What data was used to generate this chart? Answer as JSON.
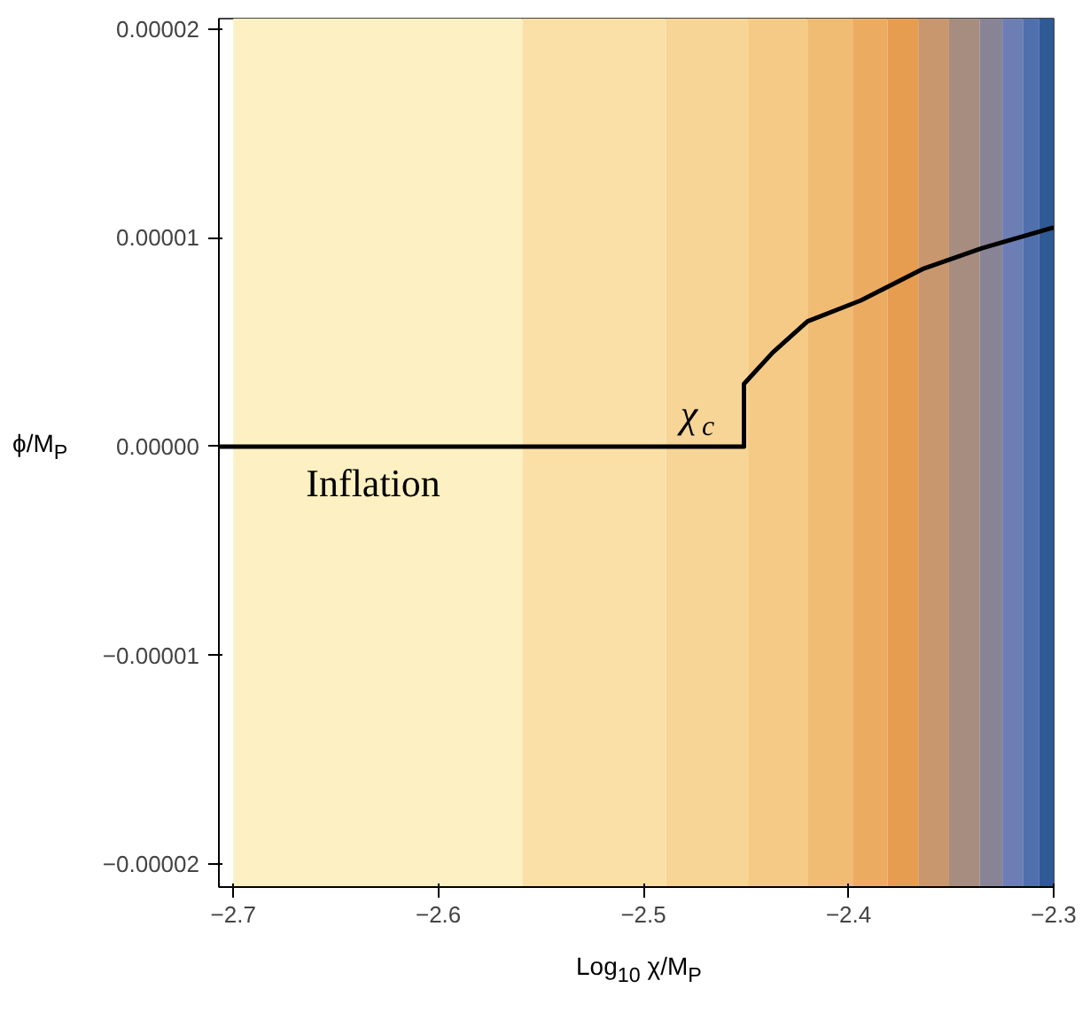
{
  "chart_data": {
    "type": "line",
    "xlabel": "Log$_{10}$ χ/M$_{P}$",
    "ylabel": "ϕ/M$_{P}$",
    "xlim": [
      -2.707,
      -2.3
    ],
    "ylim": [
      -2.11e-05,
      2.05e-05
    ],
    "xticks": [
      {
        "value": -2.7,
        "label": "−2.7"
      },
      {
        "value": -2.6,
        "label": "−2.6"
      },
      {
        "value": -2.5,
        "label": "−2.5"
      },
      {
        "value": -2.4,
        "label": "−2.4"
      },
      {
        "value": -2.3,
        "label": "−2.3"
      }
    ],
    "yticks": [
      {
        "value": -2e-05,
        "label": "−0.00002"
      },
      {
        "value": -1e-05,
        "label": "−0.00001"
      },
      {
        "value": 0,
        "label": "0.00000"
      },
      {
        "value": 1e-05,
        "label": "0.00001"
      },
      {
        "value": 2e-05,
        "label": "0.00002"
      }
    ],
    "grid": false,
    "line_style": "solid",
    "marker": "none",
    "bands": [
      {
        "axis": "x",
        "from": -2.7,
        "to": -2.559,
        "color": "#fdf0c2"
      },
      {
        "axis": "x",
        "from": -2.559,
        "to": -2.489,
        "color": "#fae0a6"
      },
      {
        "axis": "x",
        "from": -2.489,
        "to": -2.449,
        "color": "#f7d597"
      },
      {
        "axis": "x",
        "from": -2.449,
        "to": -2.42,
        "color": "#f4ca86"
      },
      {
        "axis": "x",
        "from": -2.42,
        "to": -2.398,
        "color": "#f0bc74"
      },
      {
        "axis": "x",
        "from": -2.398,
        "to": -2.381,
        "color": "#ebac62"
      },
      {
        "axis": "x",
        "from": -2.381,
        "to": -2.366,
        "color": "#e69d50"
      },
      {
        "axis": "x",
        "from": -2.366,
        "to": -2.351,
        "color": "#c9976e"
      },
      {
        "axis": "x",
        "from": -2.351,
        "to": -2.336,
        "color": "#a68d80"
      },
      {
        "axis": "x",
        "from": -2.336,
        "to": -2.325,
        "color": "#888395"
      },
      {
        "axis": "x",
        "from": -2.325,
        "to": -2.315,
        "color": "#6c7eb4"
      },
      {
        "axis": "x",
        "from": -2.315,
        "to": -2.307,
        "color": "#4f70ad"
      },
      {
        "axis": "x",
        "from": -2.307,
        "to": -2.3,
        "color": "#2f5a95"
      }
    ],
    "series": [
      {
        "color": "#000000",
        "x": [
          -2.707,
          -2.451,
          -2.451,
          -2.437,
          -2.42,
          -2.394,
          -2.364,
          -2.335,
          -2.3
        ],
        "values": [
          0,
          0,
          3e-06,
          4.5e-06,
          6e-06,
          7e-06,
          8.5e-06,
          9.5e-06,
          1.05e-05
        ]
      }
    ],
    "annotations": [
      "Inflation",
      "χ$_{c}$"
    ]
  }
}
